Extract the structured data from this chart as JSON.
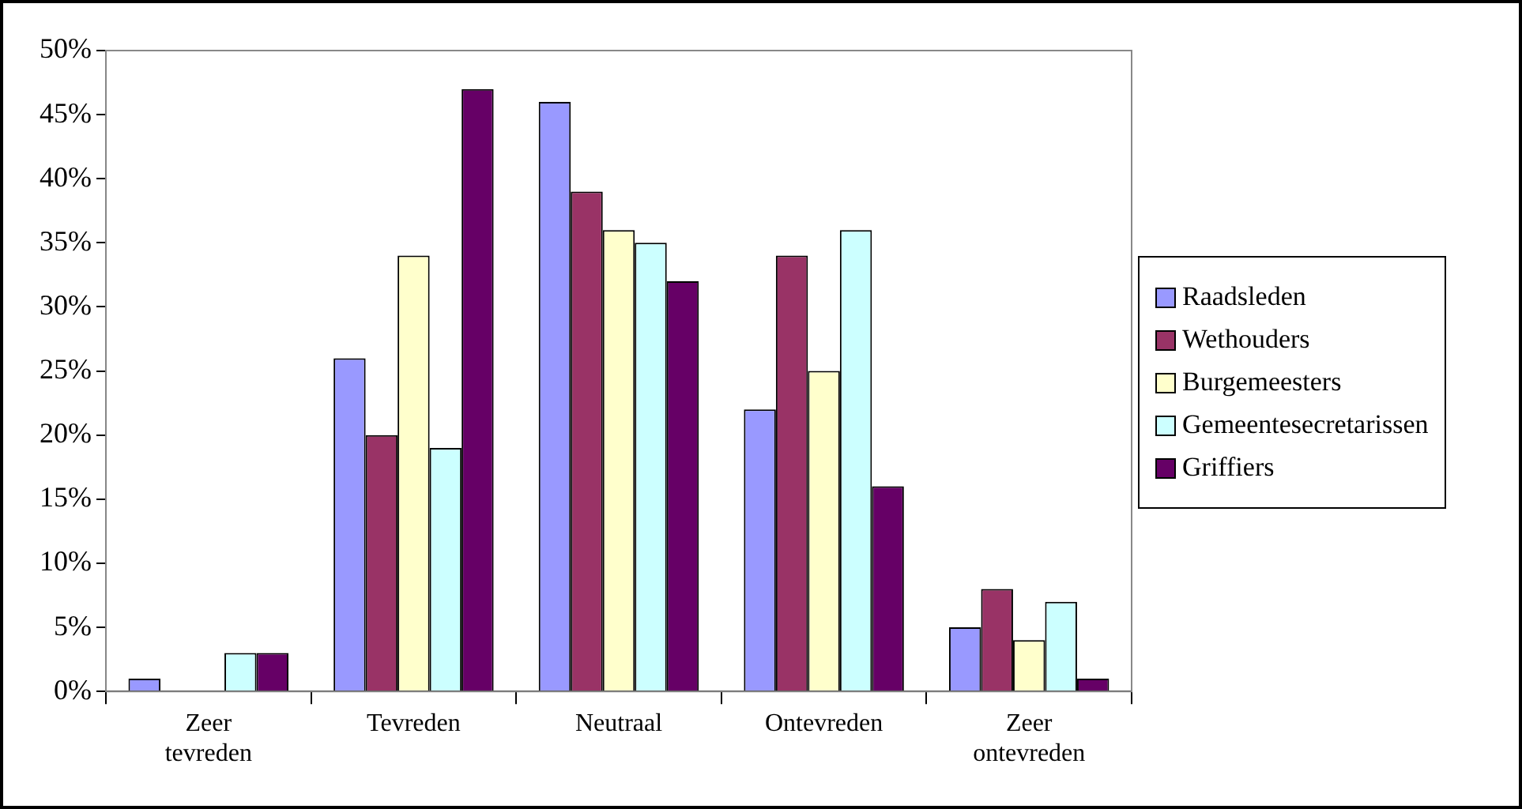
{
  "chart_data": {
    "type": "bar",
    "categories": [
      "Zeer tevreden",
      "Tevreden",
      "Neutraal",
      "Ontevreden",
      "Zeer ontevreden"
    ],
    "series": [
      {
        "name": "Raadsleden",
        "color": "#9999ff",
        "values": [
          1,
          26,
          46,
          22,
          5
        ]
      },
      {
        "name": "Wethouders",
        "color": "#993366",
        "values": [
          0,
          20,
          39,
          34,
          8
        ]
      },
      {
        "name": "Burgemeesters",
        "color": "#ffffcc",
        "values": [
          0,
          34,
          36,
          25,
          4
        ]
      },
      {
        "name": "Gemeentesecretarissen",
        "color": "#ccffff",
        "values": [
          3,
          19,
          35,
          36,
          7
        ]
      },
      {
        "name": "Griffiers",
        "color": "#660066",
        "values": [
          3,
          47,
          32,
          16,
          1
        ]
      }
    ],
    "ylim": [
      0,
      50
    ],
    "yticks": [
      {
        "value": 0,
        "label": "0%"
      },
      {
        "value": 5,
        "label": "5%"
      },
      {
        "value": 10,
        "label": "10%"
      },
      {
        "value": 15,
        "label": "15%"
      },
      {
        "value": 20,
        "label": "20%"
      },
      {
        "value": 25,
        "label": "25%"
      },
      {
        "value": 30,
        "label": "30%"
      },
      {
        "value": 35,
        "label": "35%"
      },
      {
        "value": 40,
        "label": "40%"
      },
      {
        "value": 45,
        "label": "45%"
      },
      {
        "value": 50,
        "label": "50%"
      }
    ],
    "legend": "right"
  }
}
